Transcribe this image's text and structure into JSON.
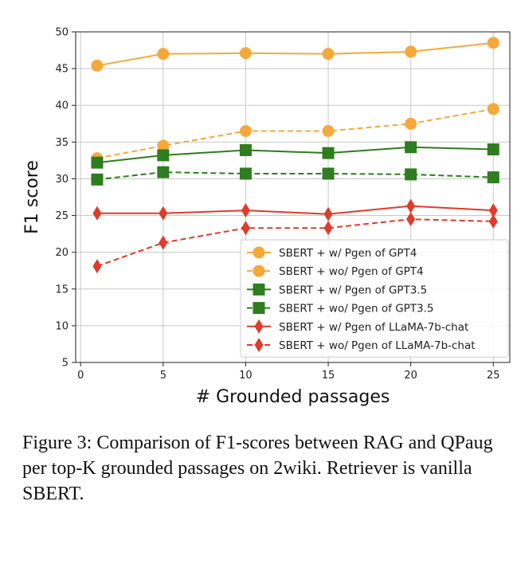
{
  "chart_data": {
    "type": "line",
    "xlabel": "# Grounded passages",
    "ylabel": "F1 score",
    "xlim": [
      -0.3,
      26
    ],
    "ylim": [
      5,
      50
    ],
    "xticks": [
      0,
      5,
      10,
      15,
      20,
      25
    ],
    "yticks": [
      5,
      10,
      15,
      20,
      25,
      30,
      35,
      40,
      45,
      50
    ],
    "grid": true,
    "legend_position": "lower-right",
    "x": [
      1,
      5,
      10,
      15,
      20,
      25
    ],
    "series": [
      {
        "name": "SBERT + w/ Pgen of GPT4",
        "values": [
          45.4,
          47.0,
          47.1,
          47.0,
          47.3,
          48.5
        ],
        "color": "#f5a93b",
        "dashed": false,
        "marker": "circle"
      },
      {
        "name": "SBERT + wo/ Pgen of GPT4",
        "values": [
          32.8,
          34.5,
          36.5,
          36.5,
          37.5,
          39.5
        ],
        "color": "#f5a93b",
        "dashed": true,
        "marker": "circle"
      },
      {
        "name": "SBERT + w/ Pgen of GPT3.5",
        "values": [
          32.2,
          33.2,
          33.9,
          33.5,
          34.3,
          34.0
        ],
        "color": "#2e7d1f",
        "dashed": false,
        "marker": "square"
      },
      {
        "name": "SBERT + wo/ Pgen of GPT3.5",
        "values": [
          29.9,
          30.9,
          30.7,
          30.7,
          30.6,
          30.2
        ],
        "color": "#2e7d1f",
        "dashed": true,
        "marker": "square"
      },
      {
        "name": "SBERT + w/ Pgen of LLaMA-7b-chat",
        "values": [
          25.3,
          25.3,
          25.7,
          25.2,
          26.3,
          25.7
        ],
        "color": "#e03b2b",
        "dashed": false,
        "marker": "diamond"
      },
      {
        "name": "SBERT + wo/ Pgen of LLaMA-7b-chat",
        "values": [
          18.1,
          21.3,
          23.3,
          23.3,
          24.5,
          24.2
        ],
        "color": "#e03b2b",
        "dashed": true,
        "marker": "diamond"
      }
    ]
  },
  "caption": "Figure 3: Comparison of F1-scores between RAG and QPaug per top-K grounded passages on 2wiki. Retriever is vanilla SBERT."
}
